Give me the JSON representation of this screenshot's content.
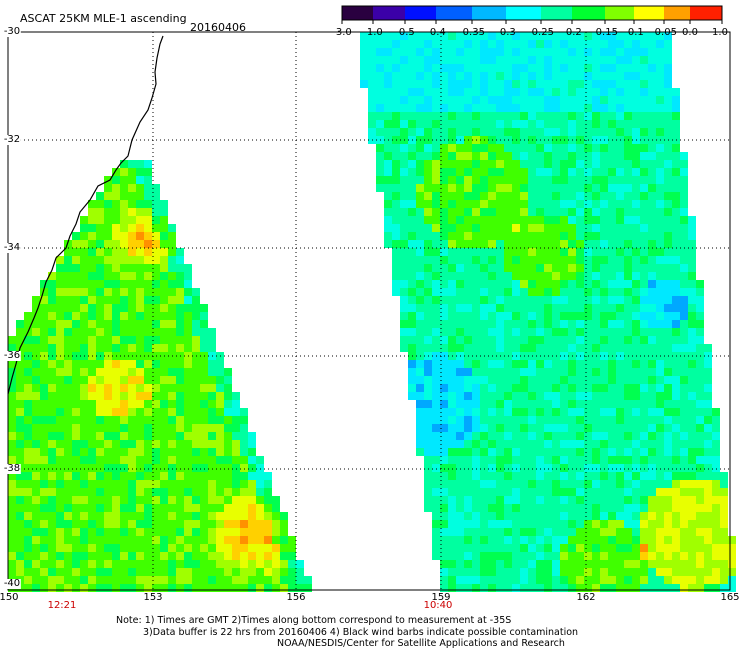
{
  "title": {
    "product": "ASCAT 25KM MLE-1 ascending",
    "date": "20160406"
  },
  "colorbar": {
    "labels": [
      "-3.0",
      "-1.0",
      "-0.5",
      "-0.4",
      "-0.35",
      "-0.3",
      "-0.25",
      "-0.2",
      "-0.15",
      "-0.1",
      "-0.05",
      "0.0",
      "1.0"
    ],
    "colors": [
      "#2a0040",
      "#3b00a8",
      "#0010ff",
      "#0060ff",
      "#00b8ff",
      "#00ffff",
      "#00ffa0",
      "#00ff30",
      "#80ff00",
      "#ffff00",
      "#ffa000",
      "#ff2000"
    ]
  },
  "axes": {
    "lat_labels": [
      "-30",
      "-32",
      "-34",
      "-36",
      "-38",
      "-40"
    ],
    "lon_labels": [
      "150",
      "153",
      "156",
      "159",
      "162",
      "165"
    ],
    "lon_range": [
      150,
      165
    ],
    "lat_range": [
      -30,
      -40
    ]
  },
  "swath_times": [
    "12:21",
    "10:40"
  ],
  "notes": [
    "Note: 1) Times are GMT 2)Times along bottom correspond to measurement at -35S",
    "3)Data buffer is 22 hrs from 20160406 4) Black wind barbs indicate possible contamination",
    "NOAA/NESDIS/Center for Satellite Applications and Research"
  ]
}
